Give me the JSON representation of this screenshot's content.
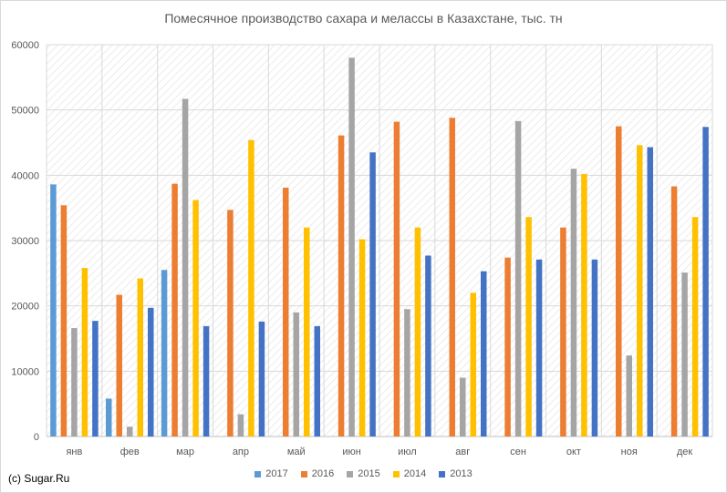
{
  "chart_data": {
    "type": "bar",
    "title": "Помесячное производство сахара и мелассы в Казахстане, тыс. тн",
    "xlabel": "",
    "ylabel": "",
    "categories": [
      "янв",
      "фев",
      "мар",
      "апр",
      "май",
      "июн",
      "июл",
      "авг",
      "сен",
      "окт",
      "ноя",
      "дек"
    ],
    "y_ticks": [
      "0",
      "10000",
      "20000",
      "30000",
      "40000",
      "50000",
      "60000"
    ],
    "ylim": [
      0,
      60000
    ],
    "grid": true,
    "legend_position": "bottom",
    "series": [
      {
        "name": "2017",
        "color": "#5b9bd5",
        "values": [
          38600,
          5800,
          25500,
          null,
          null,
          null,
          null,
          null,
          null,
          null,
          null,
          null
        ]
      },
      {
        "name": "2016",
        "color": "#ed7d31",
        "values": [
          35400,
          21700,
          38700,
          34700,
          38100,
          46100,
          48200,
          48800,
          27400,
          32000,
          47500,
          38300
        ]
      },
      {
        "name": "2015",
        "color": "#a5a5a5",
        "values": [
          16600,
          1500,
          51700,
          3400,
          19000,
          58000,
          19500,
          9000,
          48300,
          41000,
          12400,
          25100
        ]
      },
      {
        "name": "2014",
        "color": "#ffc000",
        "values": [
          25800,
          24200,
          36200,
          45400,
          32000,
          30200,
          32000,
          22000,
          33600,
          40200,
          44600,
          33600
        ]
      },
      {
        "name": "2013",
        "color": "#4472c4",
        "values": [
          17700,
          19700,
          16900,
          17600,
          16900,
          43500,
          27700,
          25300,
          27100,
          27100,
          44300,
          47400
        ]
      }
    ]
  },
  "footer": {
    "copyright": "(c) Sugar.Ru"
  }
}
